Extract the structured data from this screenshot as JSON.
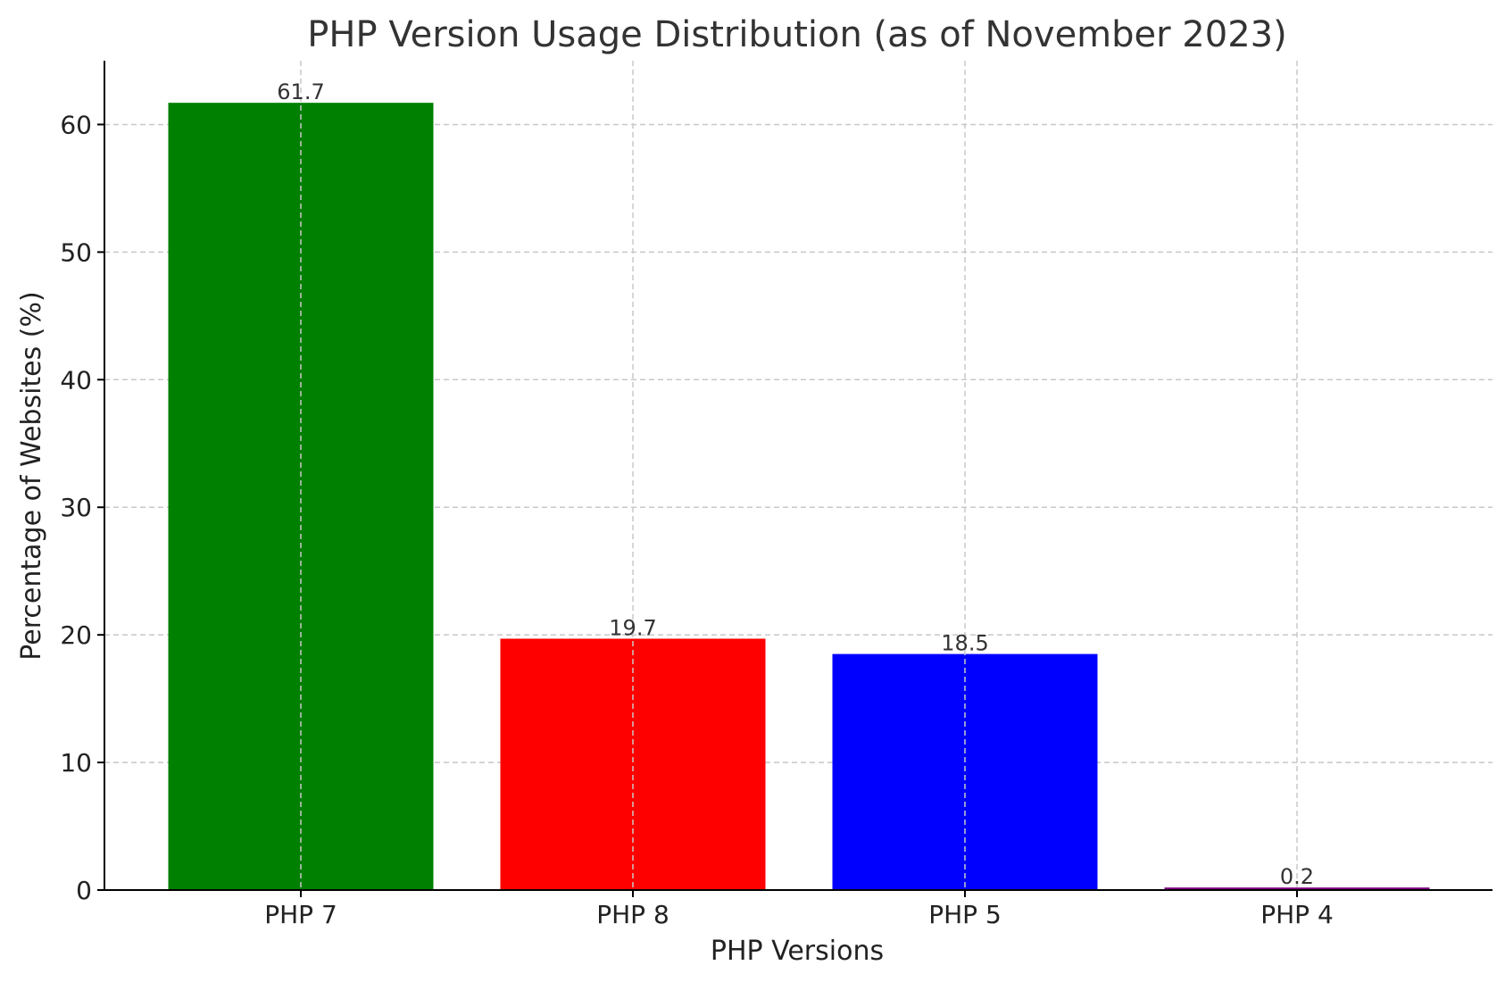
{
  "chart_data": {
    "type": "bar",
    "title": "PHP Version Usage Distribution (as of November 2023)",
    "xlabel": "PHP Versions",
    "ylabel": "Percentage of Websites (%)",
    "categories": [
      "PHP 7",
      "PHP 8",
      "PHP 5",
      "PHP 4"
    ],
    "values": [
      61.7,
      19.7,
      18.5,
      0.2
    ],
    "value_labels": [
      "61.7",
      "19.7",
      "18.5",
      "0.2"
    ],
    "colors": [
      "#008000",
      "#ff0000",
      "#0000ff",
      "#800080"
    ],
    "ylim": [
      0,
      65
    ],
    "yticks": [
      0,
      10,
      20,
      30,
      40,
      50,
      60
    ],
    "ytick_labels": [
      "0",
      "10",
      "20",
      "30",
      "40",
      "50",
      "60"
    ],
    "grid": true,
    "legend": "none"
  }
}
